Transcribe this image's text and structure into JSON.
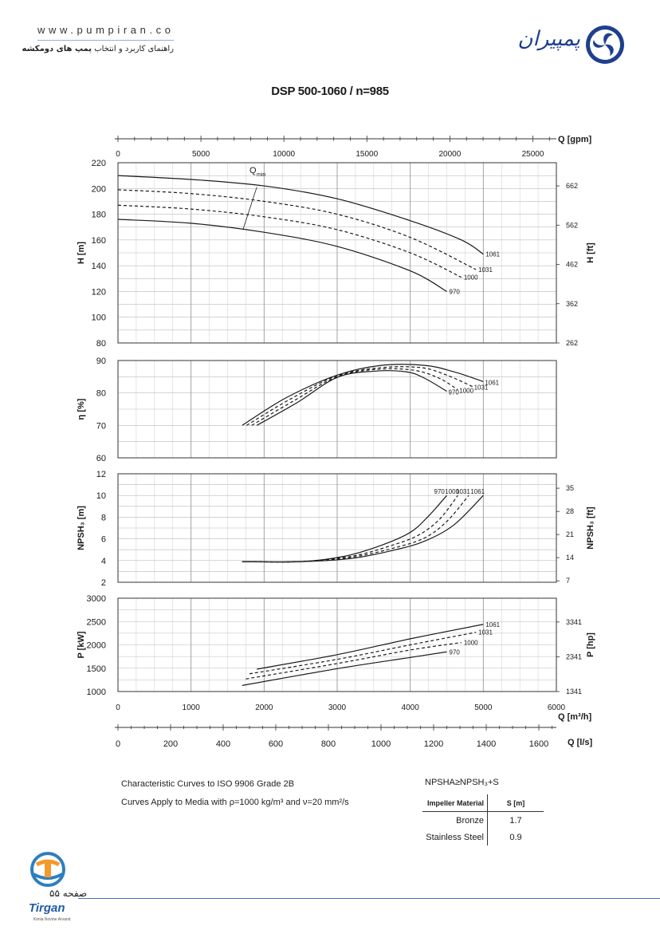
{
  "header": {
    "website": "www.pumpiran.co",
    "guide_prefix": "راهنمای کاربرد و انتخاب",
    "guide_bold": "پمپ های دومکشه",
    "brand_name": "پمپیران"
  },
  "chart_data": {
    "type": "line",
    "title": "DSP 500-1060 / n=985",
    "x_axes": {
      "gpm": {
        "label": "Q [gpm]",
        "ticks": [
          0,
          5000,
          10000,
          15000,
          20000,
          25000
        ]
      },
      "m3h": {
        "label": "Q [m³/h]",
        "ticks": [
          0,
          1000,
          2000,
          3000,
          4000,
          5000,
          6000
        ],
        "range": [
          0,
          6000
        ]
      },
      "ls": {
        "label": "Q [l/s]",
        "ticks": [
          0,
          200,
          400,
          600,
          800,
          1000,
          1200,
          1400,
          1600
        ]
      }
    },
    "panels": [
      {
        "id": "head",
        "ylabel": "H [m]",
        "ylim": [
          80,
          220
        ],
        "yticks": [
          80,
          100,
          120,
          140,
          160,
          180,
          200,
          220
        ],
        "right_label": "H [ft]",
        "right_ticks": [
          {
            "v": 262,
            "at": 80
          },
          {
            "v": 362,
            "at": 110.5
          },
          {
            "v": 462,
            "at": 141
          },
          {
            "v": 562,
            "at": 171.5
          },
          {
            "v": 662,
            "at": 202
          }
        ],
        "annotation": "Q",
        "annotation_sub": "min",
        "series": [
          {
            "name": "1061",
            "style": "solid",
            "x": [
              0,
              1000,
              2000,
              3000,
              4000,
              4700,
              5000
            ],
            "y": [
              210,
              207,
              202,
              192,
              175,
              160,
              149
            ]
          },
          {
            "name": "1031",
            "style": "dashed",
            "x": [
              0,
              1000,
              2000,
              3000,
              4000,
              4900
            ],
            "y": [
              199,
              196,
              190,
              180,
              162,
              137
            ]
          },
          {
            "name": "1000",
            "style": "dashed",
            "x": [
              0,
              1000,
              2000,
              3000,
              4000,
              4700
            ],
            "y": [
              187,
              184,
              178,
              168,
              150,
              131
            ]
          },
          {
            "name": "970",
            "style": "solid",
            "x": [
              0,
              1000,
              2000,
              3000,
              4000,
              4500
            ],
            "y": [
              176,
              173,
              166,
              155,
              136,
              120
            ]
          },
          {
            "name": "",
            "style": "thin",
            "x": [
              1710,
              1900
            ],
            "y": [
              168,
              201
            ]
          }
        ]
      },
      {
        "id": "efficiency",
        "ylabel": "η [%]",
        "ylim": [
          60,
          90
        ],
        "yticks": [
          60,
          70,
          80,
          90
        ],
        "series": [
          {
            "name": "1061",
            "style": "solid",
            "x": [
              1700,
              2300,
              3000,
              3600,
              4200,
              4600,
              5000
            ],
            "y": [
              70,
              78.5,
              85.5,
              88.5,
              88.5,
              86.5,
              83.5
            ]
          },
          {
            "name": "1031",
            "style": "dashed",
            "x": [
              1760,
              2350,
              3000,
              3600,
              4150,
              4500,
              4850
            ],
            "y": [
              70,
              78,
              85.3,
              87.8,
              87.8,
              85.5,
              82
            ]
          },
          {
            "name": "1000",
            "style": "dashed",
            "x": [
              1830,
              2400,
              3000,
              3550,
              4050,
              4400,
              4650
            ],
            "y": [
              70,
              77.5,
              85,
              87.3,
              87,
              84.5,
              81
            ]
          },
          {
            "name": "970",
            "style": "solid",
            "x": [
              1900,
              2450,
              3000,
              3500,
              3950,
              4200,
              4500
            ],
            "y": [
              70,
              77,
              84.8,
              86.7,
              86.5,
              84.5,
              80.5
            ]
          }
        ]
      },
      {
        "id": "npsh",
        "ylabel": "NPSH₃ [m]",
        "ylim": [
          2,
          12
        ],
        "yticks": [
          2,
          4,
          6,
          8,
          10,
          12
        ],
        "right_label": "NPSH₃ [ft]",
        "right_ticks": [
          {
            "v": 7,
            "at": 2.13
          },
          {
            "v": 14,
            "at": 4.27
          },
          {
            "v": 21,
            "at": 6.4
          },
          {
            "v": 28,
            "at": 8.53
          },
          {
            "v": 35,
            "at": 10.67
          }
        ],
        "series": [
          {
            "name": "1061",
            "style": "solid",
            "x": [
              1700,
              2500,
              3200,
              3800,
              4200,
              4600,
              5000
            ],
            "y": [
              3.9,
              3.9,
              4.2,
              5,
              5.8,
              7.3,
              10
            ]
          },
          {
            "name": "1031",
            "style": "dashed",
            "x": [
              1700,
              2500,
              3200,
              3800,
              4200,
              4500,
              4800
            ],
            "y": [
              3.9,
              3.9,
              4.3,
              5.2,
              6.1,
              7.6,
              10
            ]
          },
          {
            "name": "1000",
            "style": "dashed",
            "x": [
              1700,
              2500,
              3200,
              3700,
              4100,
              4400,
              4650
            ],
            "y": [
              3.9,
              3.9,
              4.4,
              5.3,
              6.3,
              7.8,
              10
            ]
          },
          {
            "name": "970",
            "style": "solid",
            "x": [
              1700,
              2500,
              3100,
              3600,
              4000,
              4250,
              4500
            ],
            "y": [
              3.9,
              3.9,
              4.4,
              5.4,
              6.6,
              8.1,
              10
            ]
          }
        ]
      },
      {
        "id": "power",
        "ylabel": "P [kW]",
        "ylim": [
          1000,
          3000
        ],
        "yticks": [
          1000,
          1500,
          2000,
          2500,
          3000
        ],
        "right_label": "P [hp]",
        "right_ticks": [
          {
            "v": 1341,
            "at": 1000
          },
          {
            "v": 2341,
            "at": 1745
          },
          {
            "v": 3341,
            "at": 2490
          }
        ],
        "series": [
          {
            "name": "1061",
            "style": "solid",
            "x": [
              1900,
              3000,
              4000,
              5000
            ],
            "y": [
              1480,
              1790,
              2130,
              2440
            ]
          },
          {
            "name": "1031",
            "style": "dashed",
            "x": [
              1800,
              3000,
              4000,
              4900
            ],
            "y": [
              1380,
              1690,
              2000,
              2270
            ]
          },
          {
            "name": "1000",
            "style": "dashed",
            "x": [
              1750,
              3000,
              4000,
              4700
            ],
            "y": [
              1270,
              1600,
              1890,
              2050
            ]
          },
          {
            "name": "970",
            "style": "solid",
            "x": [
              1700,
              3000,
              4000,
              4500
            ],
            "y": [
              1130,
              1490,
              1730,
              1850
            ]
          }
        ]
      }
    ]
  },
  "notes": {
    "line1": "Characteristic Curves to ISO 9906 Grade 2B",
    "line2": "Curves Apply to Media with  ρ=1000 kg/m³ and ν=20 mm²/s"
  },
  "npsh_table": {
    "equation": "NPSHA≥NPSH₃+S",
    "headers": [
      "Impeller Material",
      "S [m]"
    ],
    "rows": [
      {
        "material": "Bronze",
        "s": "1.7"
      },
      {
        "material": "Stainless Steel",
        "s": "0.9"
      }
    ]
  },
  "footer": {
    "page_label": "صفحه ۵۵",
    "company": "Tirgan",
    "company_sub": "Kimia Novine Arvand"
  }
}
